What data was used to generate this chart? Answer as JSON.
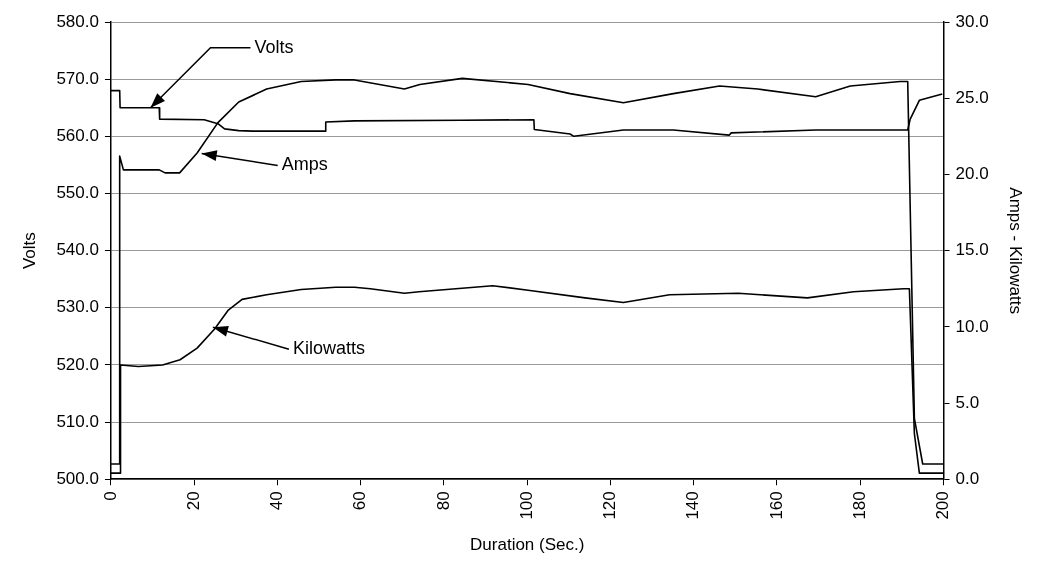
{
  "chart_data": {
    "type": "line",
    "xlabel": "Duration (Sec.)",
    "ylabel": "Volts",
    "y2label": "Amps - Kilowatts",
    "grid": "y",
    "legend": false,
    "marker": "none",
    "line_style": "solid",
    "xlim": [
      0,
      200
    ],
    "xticks": [
      0,
      20,
      40,
      60,
      80,
      100,
      120,
      140,
      160,
      180,
      200
    ],
    "ylim": [
      500,
      580
    ],
    "yticks": [
      {
        "value": 500,
        "label": "500.0"
      },
      {
        "value": 510,
        "label": "510.0"
      },
      {
        "value": 520,
        "label": "520.0"
      },
      {
        "value": 530,
        "label": "530.0"
      },
      {
        "value": 540,
        "label": "540.0"
      },
      {
        "value": 550,
        "label": "550.0"
      },
      {
        "value": 560,
        "label": "560.0"
      },
      {
        "value": 570,
        "label": "570.0"
      },
      {
        "value": 580,
        "label": "580.0"
      }
    ],
    "y2lim": [
      0,
      30
    ],
    "y2ticks": [
      {
        "value": 0,
        "label": "0.0"
      },
      {
        "value": 5,
        "label": "5.0"
      },
      {
        "value": 10,
        "label": "10.0"
      },
      {
        "value": 15,
        "label": "15.0"
      },
      {
        "value": 20,
        "label": "20.0"
      },
      {
        "value": 25,
        "label": "25.0"
      },
      {
        "value": 30,
        "label": "30.0"
      }
    ],
    "series": [
      {
        "color": "#000000",
        "axis": "y",
        "x": [
          0,
          2.1,
          2.2,
          11.6,
          11.7,
          22.4,
          25.7,
          27.3,
          30.7,
          34,
          51.5,
          51.6,
          58.5,
          84.4,
          101.6,
          101.7,
          110.3,
          111.2,
          123.1,
          135.1,
          148.5,
          149,
          169.3,
          191.4,
          192,
          194.2,
          199.7
        ],
        "values": [
          568,
          568,
          565,
          565,
          563,
          562.9,
          562.2,
          561.3,
          561,
          560.9,
          560.9,
          562.5,
          562.7,
          562.8,
          562.9,
          561.2,
          560.4,
          560,
          561.1,
          561.1,
          560.2,
          560.6,
          561.1,
          561.1,
          563,
          566.3,
          567.4
        ]
      },
      {
        "color": "#000000",
        "axis": "y2",
        "x": [
          0,
          2,
          2.1,
          3,
          5,
          11.6,
          13,
          16.5,
          20.7,
          25.7,
          30.7,
          37.4,
          45.7,
          54,
          58.5,
          70.5,
          74.2,
          84.4,
          100.2,
          110.3,
          123.1,
          135.1,
          146.2,
          155.4,
          169.3,
          177.6,
          189.6,
          191.4,
          193,
          195,
          200
        ],
        "values": [
          1,
          1,
          21.2,
          20.3,
          20.3,
          20.3,
          20.1,
          20.1,
          21.4,
          23.4,
          24.75,
          25.6,
          26.1,
          26.2,
          26.2,
          25.6,
          25.9,
          26.3,
          25.9,
          25.3,
          24.7,
          25.3,
          25.8,
          25.6,
          25.1,
          25.8,
          26.1,
          26.1,
          4,
          1,
          1
        ]
      },
      {
        "color": "#000000",
        "axis": "y2",
        "x": [
          0,
          2.2,
          2.3,
          6.6,
          12.4,
          16.6,
          20.7,
          24.9,
          28.2,
          31.5,
          37.4,
          45.7,
          54,
          58.5,
          62.3,
          70.5,
          74,
          91.7,
          100.2,
          113.9,
          123.1,
          134.2,
          150.7,
          167.3,
          178.4,
          190.4,
          191.8,
          193,
          194.2,
          200
        ],
        "values": [
          0.4,
          0.4,
          7.5,
          7.4,
          7.5,
          7.84,
          8.6,
          9.86,
          11.1,
          11.8,
          12.1,
          12.45,
          12.6,
          12.6,
          12.5,
          12.2,
          12.3,
          12.7,
          12.4,
          11.9,
          11.6,
          12.1,
          12.2,
          11.9,
          12.3,
          12.5,
          12.5,
          3,
          0.4,
          0.4
        ]
      }
    ],
    "annotations": [
      {
        "text": "Volts",
        "x": 9.5,
        "y": 565
      },
      {
        "text": "Amps",
        "x": 21.8,
        "y": 557
      },
      {
        "text": "Kilowatts",
        "x": 24.5,
        "y": 526.6
      }
    ]
  }
}
